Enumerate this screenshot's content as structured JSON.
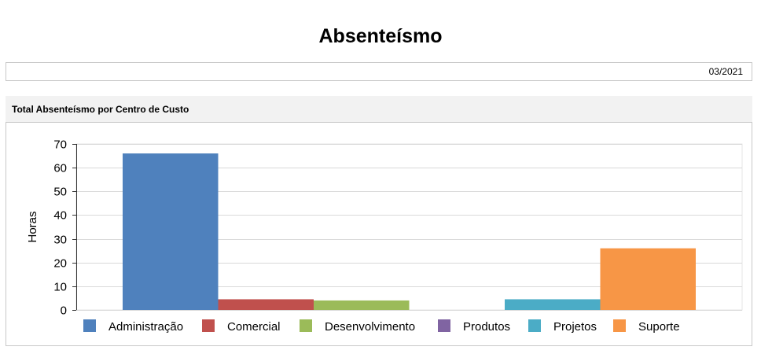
{
  "page": {
    "title": "Absenteísmo",
    "period": "03/2021",
    "section_title": "Total Absenteísmo por Centro de Custo"
  },
  "chart_data": {
    "type": "bar",
    "title": "",
    "xlabel": "",
    "ylabel": "Horas",
    "ylim": [
      0,
      70
    ],
    "yticks": [
      0,
      10,
      20,
      30,
      40,
      50,
      60,
      70
    ],
    "grid": true,
    "legend_position": "bottom",
    "series": [
      {
        "name": "Administração",
        "value": 66,
        "color": "#4f81bd"
      },
      {
        "name": "Comercial",
        "value": 4.5,
        "color": "#c0504d"
      },
      {
        "name": "Desenvolvimento",
        "value": 4,
        "color": "#9bbb59"
      },
      {
        "name": "Produtos",
        "value": 0,
        "color": "#8064a2"
      },
      {
        "name": "Projetos",
        "value": 4.5,
        "color": "#4bacc6"
      },
      {
        "name": "Suporte",
        "value": 26,
        "color": "#f79646"
      }
    ]
  }
}
